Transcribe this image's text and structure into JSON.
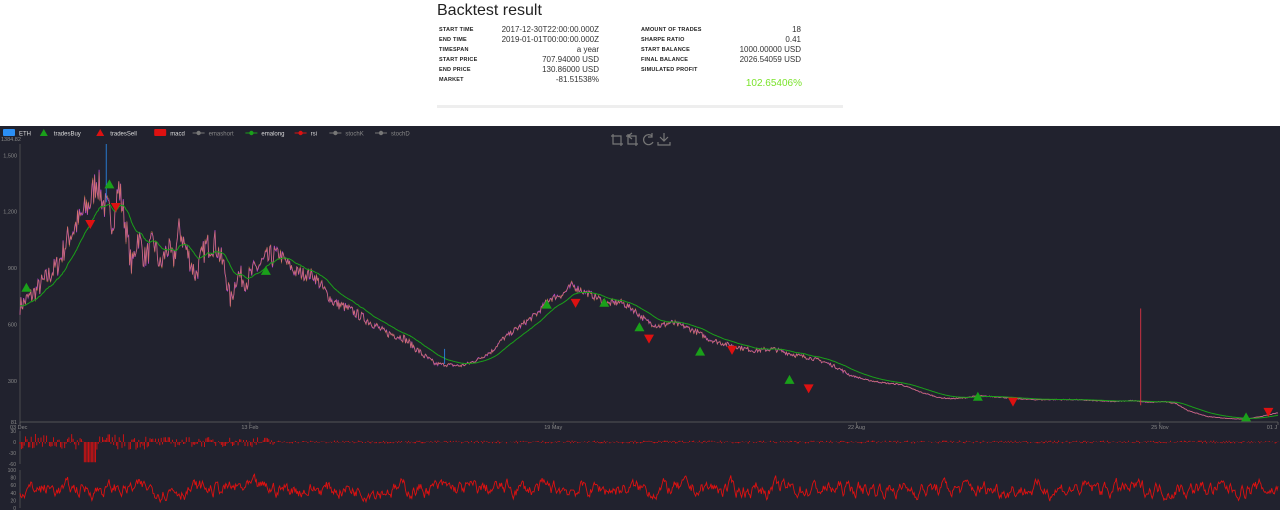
{
  "header": {
    "title": "Backtest result",
    "left_rows": [
      {
        "label": "START TIME",
        "value": "2017-12-30T22:00:00.000Z"
      },
      {
        "label": "END TIME",
        "value": "2019-01-01T00:00:00.000Z"
      },
      {
        "label": "TIMESPAN",
        "value": "a year"
      },
      {
        "label": "START PRICE",
        "value": "707.94000 USD"
      },
      {
        "label": "END PRICE",
        "value": "130.86000 USD"
      },
      {
        "label": "MARKET",
        "value": "-81.51538%"
      }
    ],
    "right_rows": [
      {
        "label": "AMOUNT OF TRADES",
        "value": "18"
      },
      {
        "label": "SHARPE RATIO",
        "value": "0.41"
      },
      {
        "label": "START BALANCE",
        "value": "1000.00000 USD"
      },
      {
        "label": "FINAL BALANCE",
        "value": "2026.54059 USD"
      },
      {
        "label": "SIMULATED PROFIT",
        "value": ""
      }
    ],
    "profit": "102.65406%",
    "profit_color": "#7be32c"
  },
  "chart_data": [
    {
      "type": "line",
      "legend_position": "top-left",
      "legend": [
        {
          "name": "ETH",
          "color": "#2b8ff5",
          "marker": "rect"
        },
        {
          "name": "tradesBuy",
          "color": "#1aa01a",
          "marker": "triangle-up"
        },
        {
          "name": "tradesSell",
          "color": "#dd1111",
          "marker": "triangle-down"
        },
        {
          "name": "macd",
          "color": "#dd1111",
          "marker": "rect"
        },
        {
          "name": "emashort",
          "color": "#777777",
          "marker": "line"
        },
        {
          "name": "emalong",
          "color": "#1aa01a",
          "marker": "line"
        },
        {
          "name": "rsi",
          "color": "#dd1111",
          "marker": "line"
        },
        {
          "name": "stochK",
          "color": "#777777",
          "marker": "line"
        },
        {
          "name": "stochD",
          "color": "#777777",
          "marker": "line"
        }
      ],
      "x_ticks": [
        {
          "label": "03 Dec",
          "day": 0
        },
        {
          "label": "13 Feb",
          "day": 72
        },
        {
          "label": "19 May",
          "day": 167
        },
        {
          "label": "22 Aug",
          "day": 262
        },
        {
          "label": "25 Nov",
          "day": 357
        },
        {
          "label": "01 J",
          "day": 394
        }
      ],
      "y_ticks": [
        81,
        300,
        600,
        900,
        1200,
        1500
      ],
      "y_top_label": "1384.82",
      "ylim": [
        81,
        1560
      ],
      "price_series": [
        [
          0,
          700
        ],
        [
          4,
          760
        ],
        [
          8,
          840
        ],
        [
          12,
          920
        ],
        [
          15,
          1060
        ],
        [
          18,
          1140
        ],
        [
          22,
          1250
        ],
        [
          24,
          1380
        ],
        [
          26,
          1250
        ],
        [
          29,
          1150
        ],
        [
          31,
          1330
        ],
        [
          33,
          1140
        ],
        [
          35,
          900
        ],
        [
          37,
          1080
        ],
        [
          39,
          950
        ],
        [
          42,
          1040
        ],
        [
          44,
          900
        ],
        [
          46,
          1010
        ],
        [
          48,
          940
        ],
        [
          50,
          1110
        ],
        [
          52,
          1000
        ],
        [
          55,
          860
        ],
        [
          58,
          1010
        ],
        [
          61,
          1040
        ],
        [
          64,
          900
        ],
        [
          66,
          720
        ],
        [
          68,
          870
        ],
        [
          71,
          830
        ],
        [
          74,
          900
        ],
        [
          77,
          940
        ],
        [
          81,
          980
        ],
        [
          86,
          880
        ],
        [
          92,
          860
        ],
        [
          98,
          720
        ],
        [
          102,
          690
        ],
        [
          106,
          650
        ],
        [
          110,
          610
        ],
        [
          114,
          560
        ],
        [
          120,
          530
        ],
        [
          126,
          440
        ],
        [
          130,
          390
        ],
        [
          134,
          385
        ],
        [
          138,
          380
        ],
        [
          141,
          395
        ],
        [
          144,
          420
        ],
        [
          148,
          460
        ],
        [
          151,
          520
        ],
        [
          155,
          570
        ],
        [
          159,
          620
        ],
        [
          162,
          660
        ],
        [
          166,
          740
        ],
        [
          170,
          760
        ],
        [
          173,
          810
        ],
        [
          176,
          780
        ],
        [
          180,
          750
        ],
        [
          184,
          710
        ],
        [
          188,
          720
        ],
        [
          192,
          680
        ],
        [
          196,
          620
        ],
        [
          200,
          590
        ],
        [
          204,
          610
        ],
        [
          208,
          590
        ],
        [
          212,
          560
        ],
        [
          216,
          520
        ],
        [
          220,
          500
        ],
        [
          225,
          480
        ],
        [
          230,
          460
        ],
        [
          236,
          470
        ],
        [
          242,
          440
        ],
        [
          248,
          420
        ],
        [
          252,
          400
        ],
        [
          256,
          370
        ],
        [
          260,
          330
        ],
        [
          265,
          305
        ],
        [
          270,
          290
        ],
        [
          276,
          280
        ],
        [
          282,
          240
        ],
        [
          288,
          210
        ],
        [
          292,
          205
        ],
        [
          296,
          210
        ],
        [
          300,
          220
        ],
        [
          306,
          215
        ],
        [
          312,
          205
        ],
        [
          318,
          200
        ],
        [
          324,
          200
        ],
        [
          330,
          200
        ],
        [
          336,
          195
        ],
        [
          342,
          190
        ],
        [
          348,
          195
        ],
        [
          354,
          185
        ],
        [
          358,
          190
        ],
        [
          362,
          180
        ],
        [
          366,
          140
        ],
        [
          372,
          110
        ],
        [
          378,
          100
        ],
        [
          384,
          95
        ],
        [
          390,
          115
        ],
        [
          394,
          130
        ]
      ],
      "trades_buy": [
        [
          2,
          790
        ],
        [
          28,
          1340
        ],
        [
          77,
          880
        ],
        [
          165,
          700
        ],
        [
          183,
          710
        ],
        [
          194,
          580
        ],
        [
          213,
          450
        ],
        [
          241,
          300
        ],
        [
          300,
          210
        ],
        [
          384,
          100
        ]
      ],
      "trades_sell": [
        [
          22,
          1140
        ],
        [
          30,
          1230
        ],
        [
          174,
          720
        ],
        [
          197,
          530
        ],
        [
          223,
          470
        ],
        [
          247,
          265
        ],
        [
          311,
          195
        ],
        [
          391,
          140
        ]
      ],
      "spike": {
        "day": 351,
        "value": 685
      }
    },
    {
      "type": "bar",
      "series_name": "macd",
      "y_ticks": [
        30,
        0,
        -30,
        -60
      ],
      "color": "#dd1111"
    },
    {
      "type": "line",
      "series_name": "rsi",
      "y_ticks": [
        100,
        80,
        60,
        40,
        20,
        0
      ],
      "ylim": [
        0,
        100
      ],
      "color": "#dd1111"
    }
  ]
}
